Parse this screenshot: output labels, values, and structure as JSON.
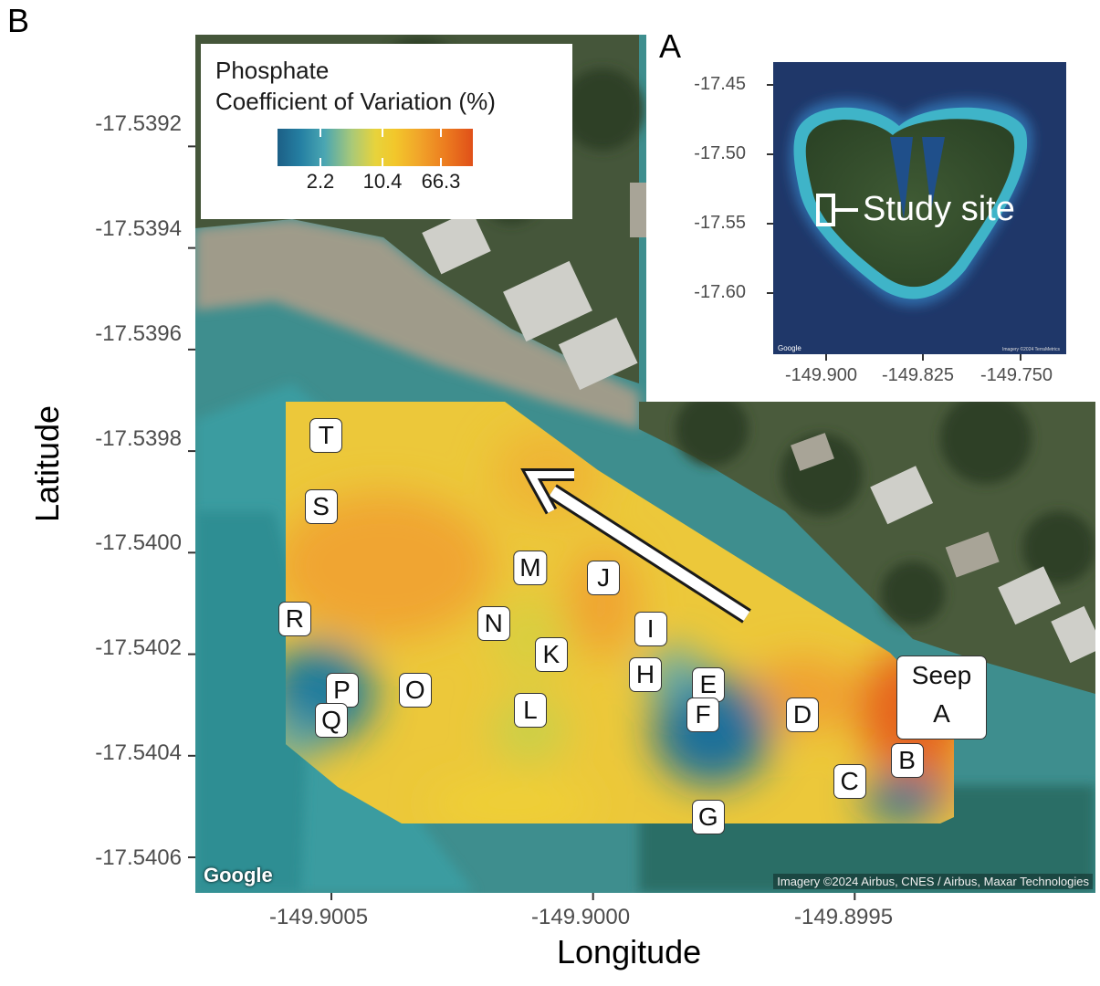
{
  "panel_b": "B",
  "panel_a": "A",
  "main_map": {
    "x_axis_title": "Longitude",
    "y_axis_title": "Latitude",
    "x_ticks": [
      "-149.9005",
      "-149.9000",
      "-149.8995"
    ],
    "y_ticks": [
      "-17.5392",
      "-17.5394",
      "-17.5396",
      "-17.5398",
      "-17.5400",
      "-17.5402",
      "-17.5404",
      "-17.5406"
    ],
    "x_range": [
      -149.90076,
      -149.89904
    ],
    "y_range": [
      -17.54067,
      -17.53898
    ],
    "google_logo": "Google",
    "attribution": "Imagery ©2024 Airbus, CNES / Airbus, Maxar Technologies"
  },
  "legend": {
    "title_line1": "Phosphate",
    "title_line2": "Coefficient of Variation (%)",
    "labels": [
      "2.2",
      "10.4",
      "66.3"
    ],
    "colors": [
      "#1c5f86",
      "#4aa6b2",
      "#e7d33c",
      "#f1a62a",
      "#e05019"
    ]
  },
  "sites": [
    {
      "id": "T",
      "lon": -149.90051,
      "lat": -17.53977
    },
    {
      "id": "S",
      "lon": -149.90052,
      "lat": -17.53991
    },
    {
      "id": "R",
      "lon": -149.90057,
      "lat": -17.54013
    },
    {
      "id": "P",
      "lon": -149.90048,
      "lat": -17.54027
    },
    {
      "id": "Q",
      "lon": -149.9005,
      "lat": -17.54033
    },
    {
      "id": "O",
      "lon": -149.90034,
      "lat": -17.54027
    },
    {
      "id": "M",
      "lon": -149.90012,
      "lat": -17.54003
    },
    {
      "id": "J",
      "lon": -149.89998,
      "lat": -17.54005
    },
    {
      "id": "N",
      "lon": -149.90019,
      "lat": -17.54014
    },
    {
      "id": "K",
      "lon": -149.90008,
      "lat": -17.5402
    },
    {
      "id": "I",
      "lon": -149.89989,
      "lat": -17.54015
    },
    {
      "id": "H",
      "lon": -149.8999,
      "lat": -17.54024
    },
    {
      "id": "L",
      "lon": -149.90012,
      "lat": -17.54031
    },
    {
      "id": "E",
      "lon": -149.89978,
      "lat": -17.54026
    },
    {
      "id": "F",
      "lon": -149.89979,
      "lat": -17.54032
    },
    {
      "id": "D",
      "lon": -149.8996,
      "lat": -17.54032
    },
    {
      "id": "B",
      "lon": -149.8994,
      "lat": -17.54041
    },
    {
      "id": "C",
      "lon": -149.89951,
      "lat": -17.54045
    },
    {
      "id": "G",
      "lon": -149.89978,
      "lat": -17.54052
    }
  ],
  "seep": {
    "line1": "Seep",
    "line2": "A"
  },
  "inset": {
    "x_ticks": [
      "-149.900",
      "-149.825",
      "-149.750"
    ],
    "y_ticks": [
      "-17.45",
      "-17.50",
      "-17.55",
      "-17.60"
    ],
    "study_site_label": "Study site",
    "google_logo": "Google",
    "attribution": "Imagery ©2024 TerraMetrics"
  }
}
